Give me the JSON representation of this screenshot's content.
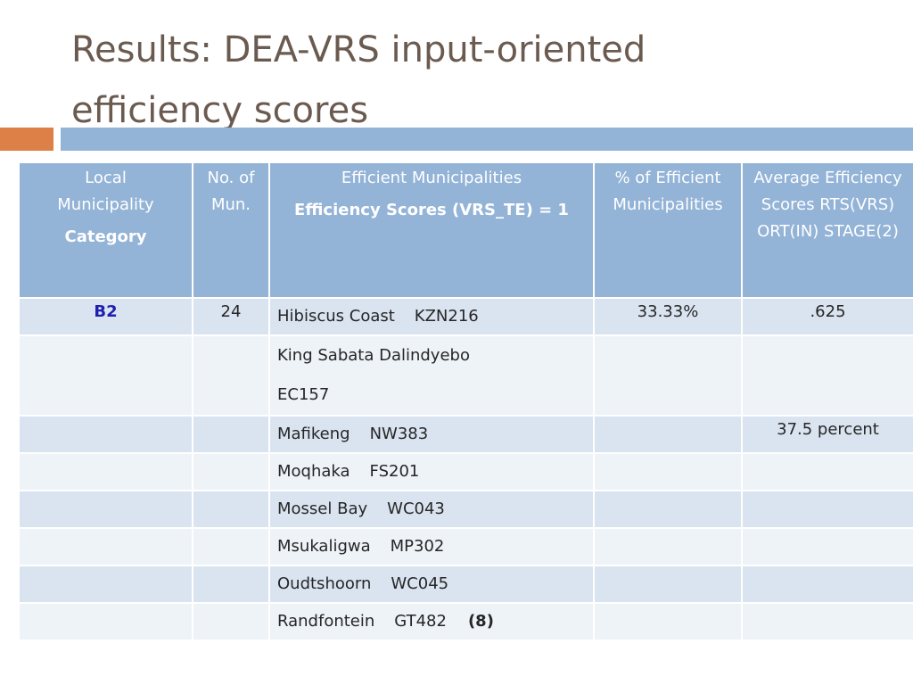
{
  "title": {
    "line1": "Results: DEA-VRS input-oriented",
    "line2": "efficiency scores"
  },
  "table": {
    "headers": {
      "col1": "Local Municipality",
      "col1_sub": "Category",
      "col2": "No. of Mun.",
      "col3": "Efficient Municipalities",
      "col3_sub": "Efficiency Scores (VRS_TE) = 1",
      "col4": "% of Efficient Municipalities",
      "col5": "Average Efficiency Scores RTS(VRS) ORT(IN) STAGE(2)"
    },
    "rows": [
      {
        "category": "B2",
        "count": "24",
        "name": "Hibiscus Coast",
        "code": "KZN216",
        "pct": "33.33%",
        "avg": ".625"
      },
      {
        "name": "King Sabata Dalindyebo",
        "code": "EC157"
      },
      {
        "name": "Mafikeng",
        "code": "NW383",
        "avg": "37.5 percent"
      },
      {
        "name": "Moqhaka",
        "code": "FS201"
      },
      {
        "name": "Mossel Bay",
        "code": "WC043"
      },
      {
        "name": "Msukaligwa",
        "code": "MP302"
      },
      {
        "name": "Oudtshoorn",
        "code": "WC045"
      },
      {
        "name": "Randfontein",
        "code": "GT482",
        "total": "(8)"
      }
    ]
  },
  "colors": {
    "title": "#6b5a4f",
    "accent_orange": "#dd8047",
    "accent_blue": "#93b3d7",
    "row_dark": "#dae4f0",
    "row_light": "#eef3f8",
    "category": "#1f1fb0"
  }
}
